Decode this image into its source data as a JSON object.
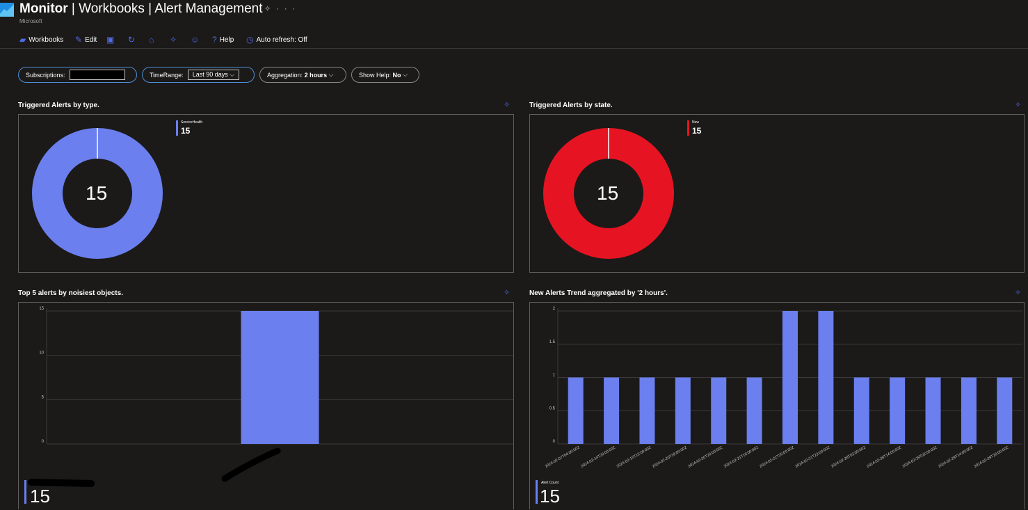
{
  "header": {
    "title_bold": "Monitor",
    "title_rest": " | Workbooks | Alert Management",
    "publisher": "Microsoft",
    "title_icons": "• …"
  },
  "toolbar": {
    "workbooks": "Workbooks",
    "edit": "Edit",
    "help": "Help",
    "auto_refresh": "Auto refresh: Off"
  },
  "params": {
    "subscriptions_label": "Subscriptions:",
    "timerange_label": "TimeRange:",
    "timerange_value": "Last 90 days",
    "aggregation_label": "Aggregation:",
    "aggregation_value": "2 hours",
    "show_help_label": "Show Help:",
    "show_help_value": "No"
  },
  "colors": {
    "accent": "#4f6bed",
    "bar": "#6b7fee",
    "donut_type": "#6b7fee",
    "donut_state": "#e61422",
    "background": "#1b1a19"
  },
  "panels": {
    "by_type": {
      "title": "Triggered Alerts by type.",
      "center": "15",
      "legend_name": "ServiceHealth",
      "legend_value": "15"
    },
    "by_state": {
      "title": "Triggered Alerts by state.",
      "center": "15",
      "legend_name": "New",
      "legend_value": "15"
    },
    "noisiest": {
      "title": "Top 5 alerts by noisiest objects.",
      "total": "15"
    },
    "trend": {
      "title": "New Alerts Trend aggregated by '2 hours'.",
      "legend_name": "Alert Count",
      "total": "15"
    }
  },
  "chart_data": [
    {
      "type": "pie",
      "title": "Triggered Alerts by type.",
      "categories": [
        "ServiceHealth"
      ],
      "values": [
        15
      ],
      "donut": true
    },
    {
      "type": "pie",
      "title": "Triggered Alerts by state.",
      "categories": [
        "New"
      ],
      "values": [
        15
      ],
      "donut": true
    },
    {
      "type": "bar",
      "title": "Top 5 alerts by noisiest objects.",
      "categories": [
        ""
      ],
      "values": [
        15
      ],
      "yticks": [
        "0",
        "5",
        "10",
        "15"
      ],
      "ylim": [
        0,
        15
      ]
    },
    {
      "type": "bar",
      "title": "New Alerts Trend aggregated by '2 hours'.",
      "categories": [
        "2024-02-07T04:00:00Z",
        "2024-02-14T20:00:00Z",
        "2024-02-15T12:00:00Z",
        "2024-02-20T18:00:00Z",
        "2024-02-20T20:00:00Z",
        "2024-02-21T16:00:00Z",
        "2024-02-21T20:00:00Z",
        "2024-02-21T22:00:00Z",
        "2024-02-28T02:00:00Z",
        "2024-02-28T14:00:00Z",
        "2024-02-29T02:00:00Z",
        "2024-02-29T14:00:00Z",
        "2024-02-29T20:00:00Z"
      ],
      "series": [
        {
          "name": "Alert Count",
          "values": [
            1,
            1,
            1,
            1,
            1,
            1,
            2,
            2,
            1,
            1,
            1,
            1,
            1
          ]
        }
      ],
      "yticks": [
        "0",
        "0.5",
        "1",
        "1.5",
        "2"
      ],
      "ylim": [
        0,
        2
      ]
    }
  ]
}
